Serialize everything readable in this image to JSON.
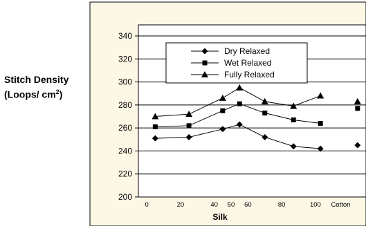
{
  "chart_data": {
    "type": "line",
    "title": "",
    "xlabel": "Silk",
    "ylabel": "Stitch Density",
    "ylabel_line2": "(Loops/ cm",
    "ylabel_sup": "2",
    "ylabel_end": ")",
    "ylim": [
      200,
      340
    ],
    "yticks": [
      200,
      220,
      240,
      260,
      280,
      300,
      320,
      340
    ],
    "xlim": [
      -5,
      130
    ],
    "xtick_labels": [
      "0",
      "20",
      "40",
      "50",
      "60",
      "80",
      "100",
      "Cotton"
    ],
    "xtick_positions": [
      0,
      20,
      40,
      50,
      60,
      80,
      100,
      115
    ],
    "grid": true,
    "legend_position": "top-center",
    "series": [
      {
        "name": "Dry Relaxed",
        "marker": "diamond",
        "x": [
          5,
          25,
          45,
          55,
          70,
          87,
          103,
          125
        ],
        "y": [
          251,
          252,
          259,
          263,
          252,
          244,
          242,
          245
        ],
        "segments": [
          [
            0,
            6
          ],
          [
            7,
            7
          ]
        ]
      },
      {
        "name": "Wet Relaxed",
        "marker": "square",
        "x": [
          5,
          25,
          45,
          55,
          70,
          87,
          103,
          125
        ],
        "y": [
          261,
          262,
          275,
          281,
          273,
          267,
          264,
          277
        ],
        "segments": [
          [
            0,
            6
          ],
          [
            7,
            7
          ]
        ]
      },
      {
        "name": "Fully Relaxed",
        "marker": "triangle",
        "x": [
          5,
          25,
          45,
          55,
          70,
          87,
          103,
          125
        ],
        "y": [
          270,
          272,
          286,
          295,
          283,
          279,
          288,
          283
        ],
        "segments": [
          [
            0,
            6
          ],
          [
            7,
            7
          ]
        ]
      }
    ]
  },
  "colors": {
    "plot_background": "#ffffff",
    "panel_background": "#fdf7e6",
    "series_color": "#000000",
    "grid": "#000000"
  }
}
